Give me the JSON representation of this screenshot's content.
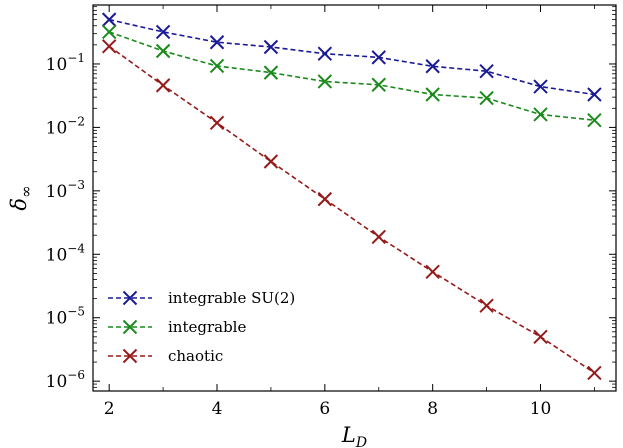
{
  "chart_data": {
    "type": "line",
    "xlabel": "L_D",
    "ylabel": "δ_∞",
    "yscale": "log",
    "xlim": [
      1.7,
      11.4
    ],
    "ylim": [
      7e-07,
      0.85
    ],
    "xticks": [
      2,
      4,
      6,
      8,
      10
    ],
    "yticks": [
      {
        "value": 1e-06,
        "mantissa": "10",
        "exp": "−6"
      },
      {
        "value": 1e-05,
        "mantissa": "10",
        "exp": "−5"
      },
      {
        "value": 0.0001,
        "mantissa": "10",
        "exp": "−4"
      },
      {
        "value": 0.001,
        "mantissa": "10",
        "exp": "−3"
      },
      {
        "value": 0.01,
        "mantissa": "10",
        "exp": "−2"
      },
      {
        "value": 0.1,
        "mantissa": "10",
        "exp": "−1"
      }
    ],
    "legend_position": "lower-left",
    "x": [
      2,
      3,
      4,
      5,
      6,
      7,
      8,
      9,
      10,
      11
    ],
    "series": [
      {
        "name": "integrable SU(2)",
        "color": "#1a1a96",
        "values": [
          0.5,
          0.32,
          0.22,
          0.185,
          0.145,
          0.127,
          0.092,
          0.077,
          0.044,
          0.033
        ]
      },
      {
        "name": "integrable",
        "color": "#1b8a1b",
        "values": [
          0.32,
          0.16,
          0.093,
          0.073,
          0.053,
          0.047,
          0.033,
          0.029,
          0.016,
          0.013
        ]
      },
      {
        "name": "chaotic",
        "color": "#961a1a",
        "values": [
          0.19,
          0.046,
          0.0118,
          0.0029,
          0.00074,
          0.000188,
          5.3e-05,
          1.55e-05,
          5e-06,
          1.35e-06
        ]
      }
    ]
  }
}
